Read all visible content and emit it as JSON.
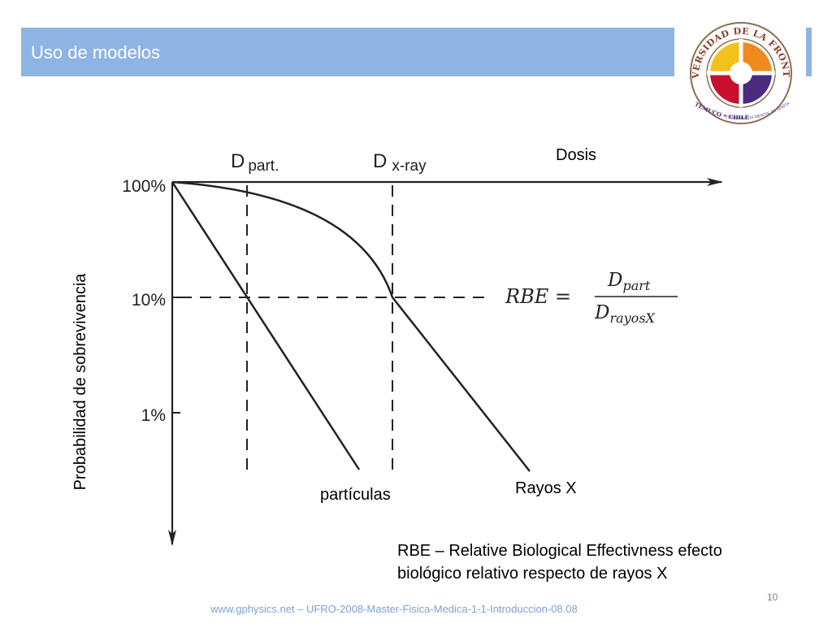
{
  "slide": {
    "title": "Uso de modelos",
    "footer": "www.gphysics.net – UFRO-2008-Master-Fisica-Medica-1-1-Introduccion-08.08",
    "page_number": "10"
  },
  "logo": {
    "ring_text": "UNIVERSIDAD DE LA FRONTERA",
    "city_text": "TEMUCO • CHILE",
    "motto": "ITINERARIUM MENTIS AD VERITATEM",
    "colors": {
      "red": "#c8102e",
      "orange": "#f08a1c",
      "yellow": "#f2c21a",
      "purple": "#4b2a7f",
      "ring": "#8b6f4e"
    }
  },
  "diagram": {
    "x_axis_label": "Dosis",
    "y_axis_label": "Probabilidad de sobrevivencia",
    "y_ticks": [
      "100%",
      "10%",
      "1%"
    ],
    "d_part_main": "D",
    "d_part_sub": "part.",
    "d_xray_main": "D",
    "d_xray_sub": "x-ray",
    "curve_particles_label": "partículas",
    "curve_xray_label": "Rayos X",
    "formula": {
      "lhs": "RBE =",
      "numerator": "D",
      "numerator_sub": "part",
      "denominator": "D",
      "denominator_sub": "rayosX"
    }
  },
  "note": "RBE – Relative Biological Effectivness efecto biológico relativo respecto de rayos X"
}
